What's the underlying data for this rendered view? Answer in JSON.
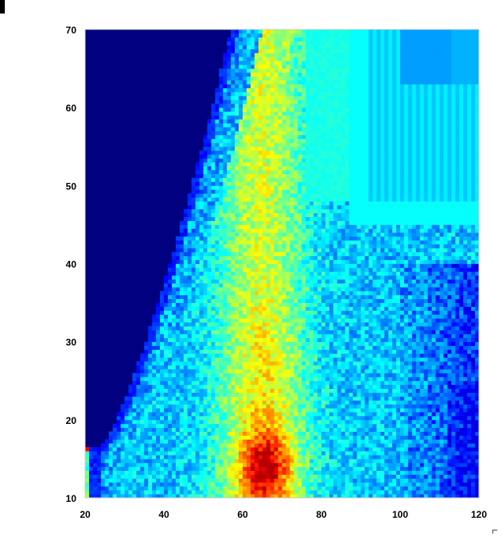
{
  "chart_data": {
    "type": "heatmap",
    "title": "",
    "xlabel": "",
    "ylabel": "",
    "xlim": [
      20,
      120
    ],
    "ylim": [
      10,
      70
    ],
    "x_ticks": [
      "20",
      "40",
      "60",
      "80",
      "100",
      "120"
    ],
    "y_ticks": [
      "10",
      "20",
      "30",
      "40",
      "50",
      "60",
      "70"
    ],
    "grid": false,
    "legend": "none",
    "colormap": [
      "#00007f",
      "#0000ff",
      "#007fff",
      "#00ffff",
      "#7fff7f",
      "#ffff00",
      "#ff7f00",
      "#ff0000"
    ],
    "colormap_name": "jet",
    "regions": [
      {
        "name": "empty-region",
        "description_value": 0.0,
        "x_range": [
          20,
          57
        ],
        "y_range": [
          17,
          70
        ]
      },
      {
        "name": "hotspot",
        "description_value": 0.85,
        "x": 66,
        "y": 14
      },
      {
        "name": "upper-right-plateau",
        "description_value": 0.33,
        "x_range": [
          87,
          120
        ],
        "y_range": [
          45,
          70
        ]
      },
      {
        "name": "high-band",
        "description_value": 0.6,
        "x_range": [
          58,
          75
        ],
        "y_range": [
          10,
          70
        ]
      }
    ]
  }
}
